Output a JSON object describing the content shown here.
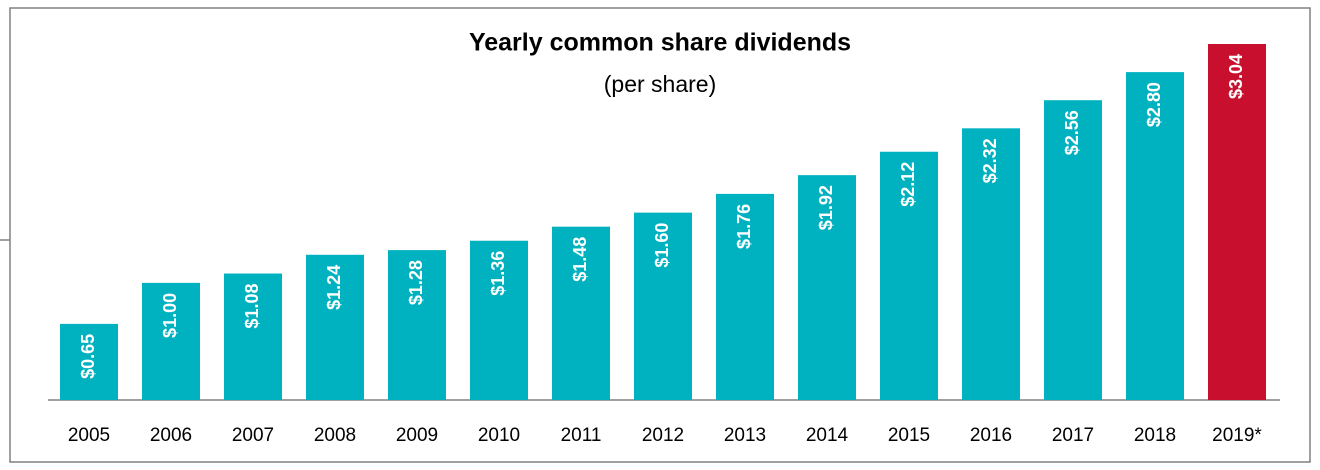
{
  "chart_data": {
    "type": "bar",
    "title": "Yearly common share dividends",
    "subtitle": "(per share)",
    "categories": [
      "2005",
      "2006",
      "2007",
      "2008",
      "2009",
      "2010",
      "2011",
      "2012",
      "2013",
      "2014",
      "2015",
      "2016",
      "2017",
      "2018",
      "2019*"
    ],
    "values": [
      0.65,
      1.0,
      1.08,
      1.24,
      1.28,
      1.36,
      1.48,
      1.6,
      1.76,
      1.92,
      2.12,
      2.32,
      2.56,
      2.8,
      3.04
    ],
    "value_labels": [
      "$0.65",
      "$1.00",
      "$1.08",
      "$1.24",
      "$1.28",
      "$1.36",
      "$1.48",
      "$1.60",
      "$1.76",
      "$1.92",
      "$2.12",
      "$2.32",
      "$2.56",
      "$2.80",
      "$3.04"
    ],
    "colors": [
      "#00b2c0",
      "#00b2c0",
      "#00b2c0",
      "#00b2c0",
      "#00b2c0",
      "#00b2c0",
      "#00b2c0",
      "#00b2c0",
      "#00b2c0",
      "#00b2c0",
      "#00b2c0",
      "#00b2c0",
      "#00b2c0",
      "#00b2c0",
      "#c8102e"
    ]
  }
}
